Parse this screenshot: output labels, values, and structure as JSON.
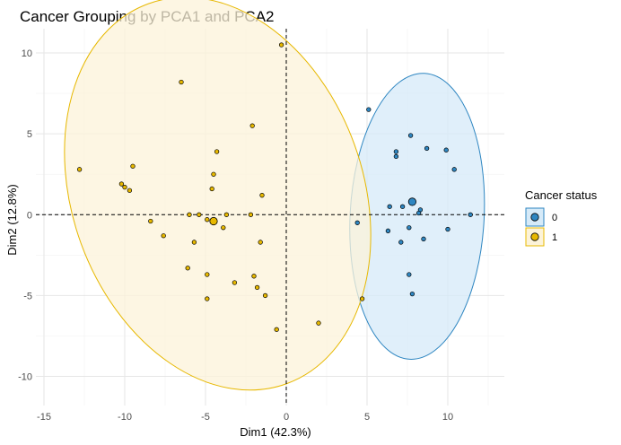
{
  "chart_data": {
    "type": "scatter",
    "title": "Cancer Grouping by PCA1 and PCA2",
    "xlabel": "Dim1 (42.3%)",
    "ylabel": "Dim2 (12.8%)",
    "xlim": [
      -15.5,
      13.5
    ],
    "ylim": [
      -11.8,
      11.5
    ],
    "x_ticks": [
      -15,
      -10,
      -5,
      0,
      5,
      10
    ],
    "y_ticks": [
      -10,
      -5,
      0,
      5,
      10
    ],
    "grid": true,
    "reference_lines": {
      "x": 0,
      "y": 0,
      "style": "dashed"
    },
    "legend": {
      "title": "Cancer status",
      "position": "right"
    },
    "series": [
      {
        "name": "0",
        "color": "#2E86C1",
        "fill": "#D6EAF8",
        "points": [
          [
            5.1,
            6.5
          ],
          [
            7.7,
            4.9
          ],
          [
            6.8,
            3.9
          ],
          [
            6.8,
            3.6
          ],
          [
            8.7,
            4.1
          ],
          [
            9.9,
            4.0
          ],
          [
            10.4,
            2.8
          ],
          [
            6.4,
            0.5
          ],
          [
            7.2,
            0.5
          ],
          [
            8.3,
            0.3
          ],
          [
            8.2,
            0.1
          ],
          [
            11.4,
            0.0
          ],
          [
            4.4,
            -0.5
          ],
          [
            6.3,
            -1.0
          ],
          [
            7.6,
            -0.8
          ],
          [
            10.0,
            -0.9
          ],
          [
            7.1,
            -1.7
          ],
          [
            8.5,
            -1.5
          ],
          [
            7.6,
            -3.7
          ],
          [
            7.8,
            -4.9
          ]
        ],
        "centroid": [
          7.8,
          0.8
        ],
        "ellipse": {
          "center": [
            8.1,
            -0.1
          ],
          "rx": 4.15,
          "ry": 8.85,
          "rotation_deg": 3
        }
      },
      {
        "name": "1",
        "color": "#E7B800",
        "fill": "#FCF3D9",
        "points": [
          [
            -0.3,
            10.5
          ],
          [
            -6.5,
            8.2
          ],
          [
            -2.1,
            5.5
          ],
          [
            -4.3,
            3.9
          ],
          [
            -12.8,
            2.8
          ],
          [
            -9.5,
            3.0
          ],
          [
            -4.5,
            2.5
          ],
          [
            -10.2,
            1.9
          ],
          [
            -10.0,
            1.7
          ],
          [
            -9.7,
            1.5
          ],
          [
            -4.6,
            1.6
          ],
          [
            -1.5,
            1.2
          ],
          [
            -6.0,
            0.0
          ],
          [
            -5.4,
            0.0
          ],
          [
            -4.9,
            -0.3
          ],
          [
            -3.7,
            0.0
          ],
          [
            -2.2,
            0.0
          ],
          [
            -8.4,
            -0.4
          ],
          [
            -3.9,
            -0.8
          ],
          [
            -7.6,
            -1.3
          ],
          [
            -5.7,
            -1.7
          ],
          [
            -1.6,
            -1.7
          ],
          [
            -6.1,
            -3.3
          ],
          [
            -4.9,
            -3.7
          ],
          [
            -3.2,
            -4.2
          ],
          [
            -2.0,
            -3.8
          ],
          [
            -1.8,
            -4.5
          ],
          [
            -1.3,
            -5.0
          ],
          [
            -4.9,
            -5.2
          ],
          [
            -0.6,
            -7.1
          ],
          [
            2.0,
            -6.7
          ],
          [
            4.7,
            -5.2
          ]
        ],
        "centroid": [
          -4.5,
          -0.4
        ],
        "ellipse": {
          "center": [
            -4.25,
            1.3
          ],
          "rx": 9.0,
          "ry": 12.5,
          "rotation_deg": -20
        }
      }
    ]
  }
}
